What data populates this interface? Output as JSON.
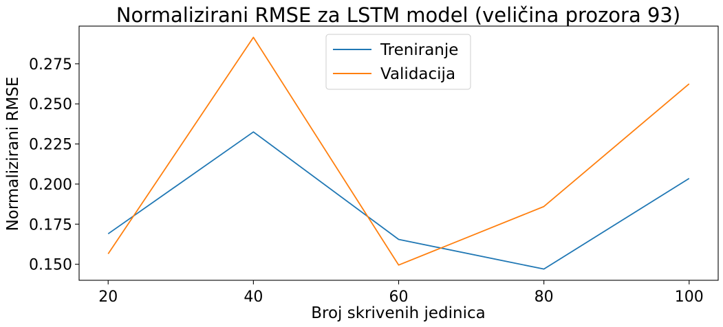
{
  "chart_data": {
    "type": "line",
    "title": "Normalizirani RMSE za LSTM model (veličina prozora 93)",
    "xlabel": "Broj skrivenih jedinica",
    "ylabel": "Normalizirani RMSE",
    "x": [
      20,
      40,
      60,
      80,
      100
    ],
    "x_ticks": [
      "20",
      "40",
      "60",
      "80",
      "100"
    ],
    "y_ticks": [
      "0.150",
      "0.175",
      "0.200",
      "0.225",
      "0.250",
      "0.275"
    ],
    "xlim": [
      16,
      104
    ],
    "ylim": [
      0.14,
      0.2985
    ],
    "grid": false,
    "legend_position": "top-center",
    "series": [
      {
        "name": "Treniranje",
        "color": "#1f77b4",
        "values": [
          0.169,
          0.2325,
          0.1655,
          0.147,
          0.2035
        ]
      },
      {
        "name": "Validacija",
        "color": "#ff7f0e",
        "values": [
          0.1565,
          0.2915,
          0.1495,
          0.186,
          0.2625
        ]
      }
    ]
  }
}
